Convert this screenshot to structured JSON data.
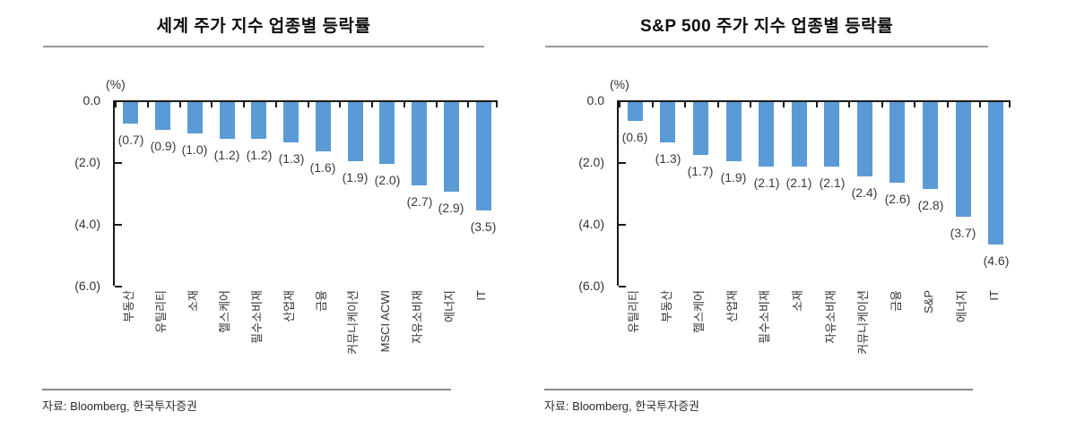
{
  "chart_data": [
    {
      "type": "bar",
      "title": "세계 주가 지수 업종별 등락률",
      "unit": "(%)",
      "ylim": [
        -6,
        0
      ],
      "y_tick_labels": [
        "0.0",
        "(2.0)",
        "(4.0)",
        "(6.0)"
      ],
      "grid": false,
      "legend": "none",
      "bar_color": "#5B9BD5",
      "categories": [
        "부동산",
        "유틸리티",
        "소재",
        "헬스케어",
        "필수소비재",
        "산업재",
        "금융",
        "커뮤니케이션",
        "MSCI ACWI",
        "자유소비재",
        "에너지",
        "IT"
      ],
      "values": [
        -0.7,
        -0.9,
        -1.0,
        -1.2,
        -1.2,
        -1.3,
        -1.6,
        -1.9,
        -2.0,
        -2.7,
        -2.9,
        -3.5
      ],
      "data_labels": [
        "(0.7)",
        "(0.9)",
        "(1.0)",
        "(1.2)",
        "(1.2)",
        "(1.3)",
        "(1.6)",
        "(1.9)",
        "(2.0)",
        "(2.7)",
        "(2.9)",
        "(3.5)"
      ],
      "source": "자료: Bloomberg, 한국투자증권"
    },
    {
      "type": "bar",
      "title": "S&P 500 주가 지수 업종별 등락률",
      "unit": "(%)",
      "ylim": [
        -6,
        0
      ],
      "y_tick_labels": [
        "0.0",
        "(2.0)",
        "(4.0)",
        "(6.0)"
      ],
      "grid": false,
      "legend": "none",
      "bar_color": "#5B9BD5",
      "categories": [
        "유틸리티",
        "부동산",
        "헬스케어",
        "산업재",
        "필수소비재",
        "소재",
        "자유소비재",
        "커뮤니케이션",
        "금융",
        "S&P",
        "에너지",
        "IT"
      ],
      "values": [
        -0.6,
        -1.3,
        -1.7,
        -1.9,
        -2.1,
        -2.1,
        -2.1,
        -2.4,
        -2.6,
        -2.8,
        -3.7,
        -4.6
      ],
      "data_labels": [
        "(0.6)",
        "(1.3)",
        "(1.7)",
        "(1.9)",
        "(2.1)",
        "(2.1)",
        "(2.1)",
        "(2.4)",
        "(2.6)",
        "(2.8)",
        "(3.7)",
        "(4.6)"
      ],
      "source": "자료: Bloomberg, 한국투자증권"
    }
  ]
}
